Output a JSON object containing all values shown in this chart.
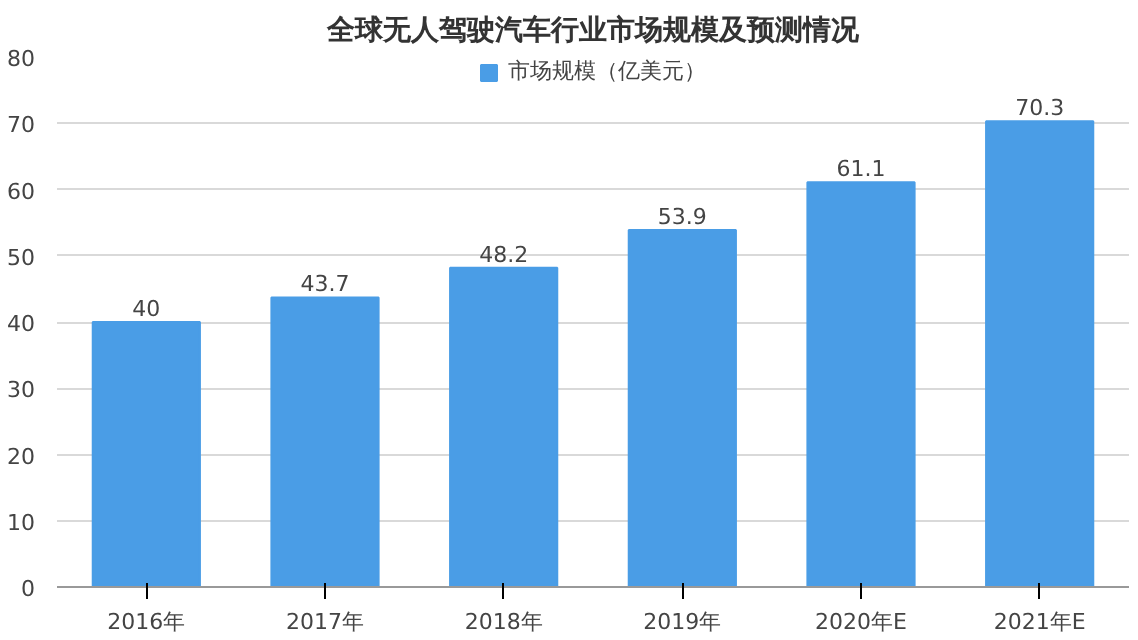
{
  "chart_data": {
    "type": "bar",
    "title": "全球无人驾驶汽车行业市场规模及预测情况",
    "categories": [
      "2016年",
      "2017年",
      "2018年",
      "2019年",
      "2020年E",
      "2021年E"
    ],
    "series": [
      {
        "name": "市场规模（亿美元）",
        "color": "#4a9de6",
        "values": [
          40,
          43.7,
          48.2,
          53.9,
          61.1,
          70.3
        ]
      }
    ],
    "ylim": [
      0,
      80
    ],
    "yticks": [
      0,
      10,
      20,
      30,
      40,
      50,
      60,
      70,
      80
    ],
    "grid": "y",
    "legend": "top",
    "data_labels": true
  }
}
